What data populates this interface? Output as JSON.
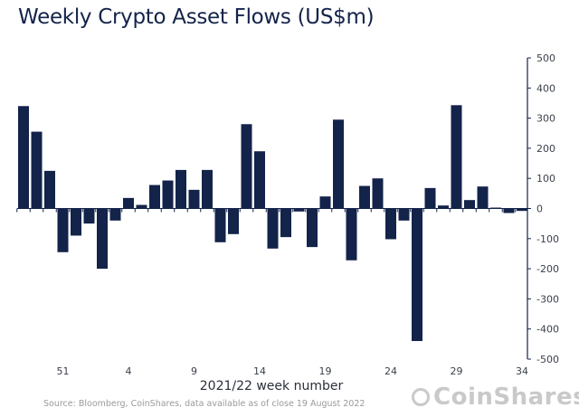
{
  "chart_data": {
    "type": "bar",
    "title": "Weekly Crypto Asset Flows (US$m)",
    "xlabel": "2021/22 week number",
    "ylabel": "",
    "ylim": [
      -500,
      500
    ],
    "yticks": [
      500,
      400,
      300,
      200,
      100,
      0,
      -100,
      -200,
      -300,
      -400,
      -500
    ],
    "grid": false,
    "y_axis_side": "right",
    "color": "#13234a",
    "categories": [
      48,
      49,
      50,
      51,
      52,
      1,
      2,
      3,
      4,
      5,
      6,
      7,
      8,
      9,
      10,
      11,
      12,
      13,
      14,
      15,
      16,
      17,
      18,
      19,
      20,
      21,
      22,
      23,
      24,
      25,
      26,
      27,
      28,
      29,
      30,
      31,
      32,
      33,
      34
    ],
    "xtick_labels": [
      "51",
      "4",
      "9",
      "14",
      "19",
      "24",
      "29",
      "34"
    ],
    "values": [
      340,
      255,
      125,
      -145,
      -90,
      -50,
      -200,
      -40,
      35,
      12,
      78,
      93,
      128,
      62,
      128,
      -112,
      -85,
      280,
      190,
      -133,
      -95,
      -10,
      -128,
      40,
      295,
      -172,
      75,
      100,
      -102,
      -40,
      -440,
      68,
      10,
      343,
      28,
      73,
      3,
      -15,
      -8
    ]
  },
  "source": "Source: Bloomberg, CoinShares, data available as of close 19 August 2022",
  "logo_text": "CoinShares"
}
